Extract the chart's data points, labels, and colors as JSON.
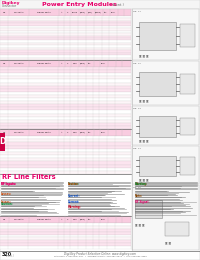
{
  "bg_color": "#ffffff",
  "pink_header": "#f9cce0",
  "pink_highlight": "#f8b8d0",
  "pink_title": "#e8006a",
  "pink_bright": "#e8006a",
  "pink_section_bg": "#fde8f0",
  "gray_line": "#bbbbbb",
  "gray_dark": "#666666",
  "gray_med": "#999999",
  "text_dark": "#111111",
  "text_med": "#333333",
  "sidebar_red": "#cc0044",
  "white": "#ffffff",
  "pink_row": "#fce4ef",
  "pink_row2": "#fddbe8",
  "footer_gray": "#dddddd",
  "note": "200x260 pixel datasheet page reproduction"
}
